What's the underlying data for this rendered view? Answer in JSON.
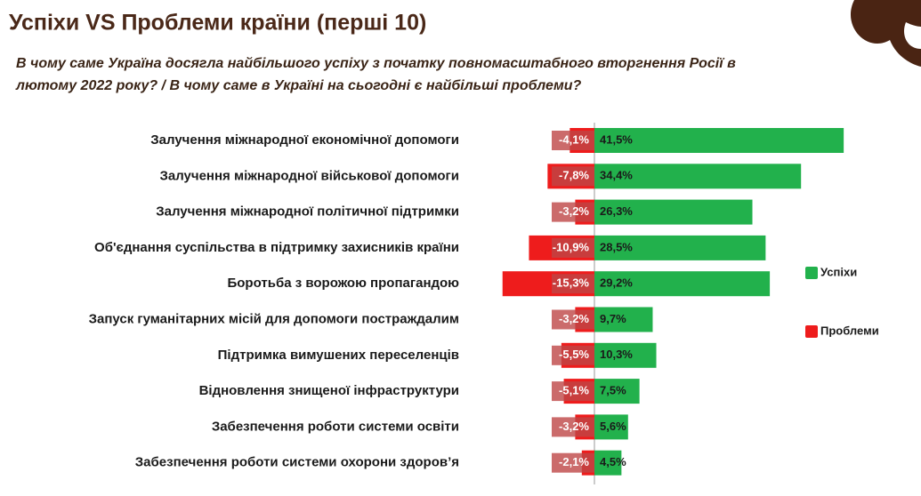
{
  "chart_data": {
    "type": "diverging_bar",
    "title": "Успіхи VS Проблеми країни (перші 10)",
    "subtitle_lines": [
      "В чому саме Україна досягла найбільшого успіху з початку повномасштабного вторгнення Росії в",
      "лютому 2022 року? / В чому саме в Україні на сьогодні є найбільші проблеми?"
    ],
    "categories": [
      "Залучення міжнародної економічної допомоги",
      "Залучення міжнародної військової допомоги",
      "Залучення міжнародної політичної підтримки",
      "Об'єднання суспільства в підтримку захисників країни",
      "Боротьба з ворожою пропагандою",
      "Запуск гуманітарних місій для допомоги постраждалим",
      "Підтримка вимушених переселенців",
      "Відновлення знищеної інфраструктури",
      "Забезпечення роботи системи освіти",
      "Забезпечення роботи системи охорони здоров’я"
    ],
    "series": [
      {
        "name": "Успіхи",
        "color": "#22b14c",
        "values": [
          41.5,
          34.4,
          26.3,
          28.5,
          29.2,
          9.7,
          10.3,
          7.5,
          5.6,
          4.5
        ],
        "value_labels": [
          "41,5%",
          "34,4%",
          "26,3%",
          "28,5%",
          "29,2%",
          "9,7%",
          "10,3%",
          "7,5%",
          "5,6%",
          "4,5%"
        ]
      },
      {
        "name": "Проблеми",
        "color": "#ee1c1c",
        "values": [
          -4.1,
          -7.8,
          -3.2,
          -10.9,
          -15.3,
          -3.2,
          -5.5,
          -5.1,
          -3.2,
          -2.1
        ],
        "value_labels": [
          "-4,1%",
          "-7,8%",
          "-3,2%",
          "-10,9%",
          "-15,3%",
          "-3,2%",
          "-5,5%",
          "-5,1%",
          "-3,2%",
          "-2,1%"
        ]
      }
    ],
    "legend": "right"
  }
}
